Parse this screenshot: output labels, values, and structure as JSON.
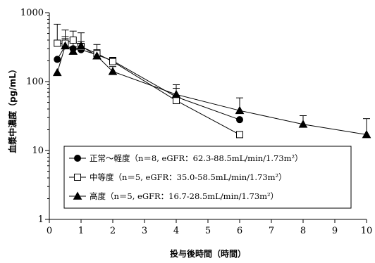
{
  "chart_data": {
    "type": "line",
    "title": "",
    "xlabel": "投与後時間（時間）",
    "ylabel": "血漿中濃度（pg/mL）",
    "xlim": [
      0,
      10
    ],
    "ylim": [
      1,
      1000
    ],
    "yscale": "log",
    "x_ticks": [
      0,
      1,
      2,
      3,
      4,
      5,
      6,
      7,
      8,
      9,
      10
    ],
    "y_ticks": [
      {
        "value": 1,
        "label": "1"
      },
      {
        "value": 10,
        "label": "10"
      },
      {
        "value": 100,
        "label": "100"
      },
      {
        "value": 1000,
        "label": "1000"
      }
    ],
    "grid": false,
    "legend_position": "bottom-center",
    "series": [
      {
        "name": "正常～軽度（n＝8, eGFR：62.3-88.5mL/min/1.73m²）",
        "marker": "filled-circle",
        "x": [
          0.25,
          0.5,
          0.75,
          1,
          1.5,
          2,
          4,
          6
        ],
        "y": [
          210,
          330,
          300,
          290,
          245,
          200,
          60,
          28
        ],
        "err_upper": [
          null,
          420,
          360,
          360,
          290,
          225,
          80,
          null
        ]
      },
      {
        "name": "中等度（n＝5, eGFR：35.0-58.5mL/min/1.73m²）",
        "marker": "open-square",
        "x": [
          0.25,
          0.5,
          0.75,
          1,
          1.5,
          2,
          4,
          6
        ],
        "y": [
          360,
          360,
          400,
          320,
          255,
          195,
          53,
          17
        ],
        "err_upper": [
          680,
          560,
          540,
          510,
          345,
          220,
          null,
          null
        ]
      },
      {
        "name": "高度（n＝5, eGFR：16.7-28.5mL/min/1.73m²）",
        "marker": "filled-triangle",
        "x": [
          0.25,
          0.5,
          0.75,
          1,
          1.5,
          2,
          4,
          6,
          8,
          10
        ],
        "y": [
          135,
          330,
          275,
          330,
          235,
          140,
          65,
          38,
          24,
          17
        ],
        "err_upper": [
          null,
          450,
          320,
          380,
          280,
          165,
          90,
          58,
          32,
          29
        ]
      }
    ]
  }
}
